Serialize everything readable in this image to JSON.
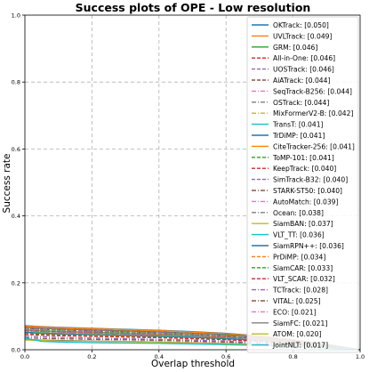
{
  "chart_data": {
    "type": "line",
    "title": "Success plots of OPE - Low resolution",
    "xlabel": "Overlap threshold",
    "ylabel": "Success rate",
    "xlim": [
      0,
      1
    ],
    "ylim": [
      0,
      1
    ],
    "grid": true,
    "legend_position": "top-right",
    "x": [
      0,
      0.05,
      0.1,
      0.2,
      0.3,
      0.4,
      0.5,
      0.6,
      0.7,
      0.8,
      0.9,
      1.0
    ],
    "x_ticks": [
      0.0,
      0.2,
      0.4,
      0.6,
      0.8,
      1.0
    ],
    "x_tick_labels": [
      "0.0",
      "0.2",
      "0.4",
      "0.6",
      "0.8",
      "1.0"
    ],
    "y_ticks": [
      0.0,
      0.2,
      0.4,
      0.6,
      0.8,
      1.0
    ],
    "y_tick_labels": [
      "0.0",
      "0.2",
      "0.4",
      "0.6",
      "0.8",
      "1.0"
    ],
    "series": [
      {
        "label": "OKTrack: [0.050]",
        "color": "#1f77b4",
        "dash": "solid",
        "values": [
          0.072,
          0.069,
          0.067,
          0.064,
          0.061,
          0.058,
          0.054,
          0.049,
          0.041,
          0.03,
          0.016,
          0.0
        ]
      },
      {
        "label": "UVLTrack: [0.049]",
        "color": "#ff7f0e",
        "dash": "solid",
        "values": [
          0.071,
          0.068,
          0.066,
          0.063,
          0.06,
          0.057,
          0.053,
          0.048,
          0.04,
          0.029,
          0.015,
          0.0
        ]
      },
      {
        "label": "GRM: [0.046]",
        "color": "#2ca02c",
        "dash": "solid",
        "values": [
          0.067,
          0.064,
          0.062,
          0.059,
          0.056,
          0.053,
          0.049,
          0.045,
          0.037,
          0.027,
          0.014,
          0.0
        ]
      },
      {
        "label": "All-in-One: [0.046]",
        "color": "#d62728",
        "dash": "dashed",
        "values": [
          0.067,
          0.064,
          0.062,
          0.059,
          0.056,
          0.053,
          0.049,
          0.044,
          0.037,
          0.027,
          0.014,
          0.0
        ]
      },
      {
        "label": "UOSTrack: [0.046]",
        "color": "#9467bd",
        "dash": "dashed",
        "values": [
          0.066,
          0.063,
          0.061,
          0.058,
          0.055,
          0.052,
          0.049,
          0.044,
          0.037,
          0.027,
          0.014,
          0.0
        ]
      },
      {
        "label": "AiATrack: [0.044]",
        "color": "#8c564b",
        "dash": "dashed",
        "values": [
          0.064,
          0.061,
          0.059,
          0.056,
          0.053,
          0.05,
          0.047,
          0.042,
          0.035,
          0.026,
          0.013,
          0.0
        ]
      },
      {
        "label": "SeqTrack-B256: [0.044]",
        "color": "#e377c2",
        "dash": "dashdot",
        "values": [
          0.064,
          0.061,
          0.059,
          0.056,
          0.053,
          0.05,
          0.047,
          0.042,
          0.035,
          0.025,
          0.013,
          0.0
        ]
      },
      {
        "label": "OSTrack: [0.044]",
        "color": "#7f7f7f",
        "dash": "dashdot",
        "values": [
          0.063,
          0.06,
          0.058,
          0.055,
          0.053,
          0.05,
          0.046,
          0.042,
          0.035,
          0.025,
          0.013,
          0.0
        ]
      },
      {
        "label": "MixFormerV2-B: [0.042]",
        "color": "#bcbd22",
        "dash": "dashdot",
        "values": [
          0.061,
          0.058,
          0.056,
          0.053,
          0.051,
          0.048,
          0.045,
          0.04,
          0.033,
          0.024,
          0.012,
          0.0
        ]
      },
      {
        "label": "TransT: [0.041]",
        "color": "#17becf",
        "dash": "solid",
        "values": [
          0.06,
          0.057,
          0.055,
          0.052,
          0.05,
          0.047,
          0.044,
          0.039,
          0.033,
          0.024,
          0.012,
          0.0
        ]
      },
      {
        "label": "TrDiMP: [0.041]",
        "color": "#1f77b4",
        "dash": "solid",
        "values": [
          0.059,
          0.056,
          0.054,
          0.052,
          0.049,
          0.046,
          0.043,
          0.039,
          0.032,
          0.023,
          0.012,
          0.0
        ]
      },
      {
        "label": "CiteTracker-256: [0.041]",
        "color": "#ff7f0e",
        "dash": "solid",
        "values": [
          0.059,
          0.056,
          0.054,
          0.051,
          0.049,
          0.046,
          0.043,
          0.039,
          0.032,
          0.023,
          0.012,
          0.0
        ]
      },
      {
        "label": "ToMP-101: [0.041]",
        "color": "#2ca02c",
        "dash": "dashed",
        "values": [
          0.059,
          0.056,
          0.054,
          0.051,
          0.049,
          0.046,
          0.043,
          0.038,
          0.032,
          0.023,
          0.012,
          0.0
        ]
      },
      {
        "label": "KeepTrack: [0.040]",
        "color": "#d62728",
        "dash": "dashed",
        "values": [
          0.058,
          0.055,
          0.053,
          0.05,
          0.048,
          0.045,
          0.042,
          0.038,
          0.031,
          0.023,
          0.011,
          0.0
        ]
      },
      {
        "label": "SimTrack-B32: [0.040]",
        "color": "#9467bd",
        "dash": "dashed",
        "values": [
          0.058,
          0.055,
          0.053,
          0.05,
          0.048,
          0.045,
          0.042,
          0.037,
          0.031,
          0.022,
          0.011,
          0.0
        ]
      },
      {
        "label": "STARK-ST50: [0.040]",
        "color": "#8c564b",
        "dash": "dashdot",
        "values": [
          0.057,
          0.054,
          0.052,
          0.05,
          0.047,
          0.045,
          0.042,
          0.037,
          0.031,
          0.022,
          0.011,
          0.0
        ]
      },
      {
        "label": "AutoMatch: [0.039]",
        "color": "#e377c2",
        "dash": "dashdot",
        "values": [
          0.056,
          0.053,
          0.051,
          0.049,
          0.046,
          0.044,
          0.041,
          0.036,
          0.03,
          0.022,
          0.011,
          0.0
        ]
      },
      {
        "label": "Ocean: [0.038]",
        "color": "#7f7f7f",
        "dash": "dashdot",
        "values": [
          0.055,
          0.052,
          0.05,
          0.047,
          0.045,
          0.043,
          0.04,
          0.035,
          0.029,
          0.021,
          0.011,
          0.0
        ]
      },
      {
        "label": "SiamBAN: [0.037]",
        "color": "#bcbd22",
        "dash": "solid",
        "values": [
          0.053,
          0.051,
          0.049,
          0.046,
          0.044,
          0.042,
          0.039,
          0.034,
          0.029,
          0.021,
          0.01,
          0.0
        ]
      },
      {
        "label": "VLT_TT: [0.036]",
        "color": "#17becf",
        "dash": "solid",
        "values": [
          0.052,
          0.05,
          0.048,
          0.045,
          0.043,
          0.041,
          0.038,
          0.034,
          0.028,
          0.02,
          0.01,
          0.0
        ]
      },
      {
        "label": "SiamRPN++: [0.036]",
        "color": "#1f77b4",
        "dash": "solid",
        "values": [
          0.052,
          0.049,
          0.047,
          0.045,
          0.043,
          0.04,
          0.037,
          0.033,
          0.028,
          0.02,
          0.01,
          0.0
        ]
      },
      {
        "label": "PrDiMP: [0.034]",
        "color": "#ff7f0e",
        "dash": "dashed",
        "values": [
          0.049,
          0.047,
          0.045,
          0.043,
          0.041,
          0.038,
          0.035,
          0.031,
          0.026,
          0.019,
          0.009,
          0.0
        ]
      },
      {
        "label": "SiamCAR: [0.033]",
        "color": "#2ca02c",
        "dash": "dashed",
        "values": [
          0.048,
          0.046,
          0.044,
          0.041,
          0.039,
          0.037,
          0.034,
          0.031,
          0.025,
          0.018,
          0.009,
          0.0
        ]
      },
      {
        "label": "VLT_SCAR: [0.032]",
        "color": "#d62728",
        "dash": "dashed",
        "values": [
          0.046,
          0.044,
          0.042,
          0.04,
          0.038,
          0.036,
          0.033,
          0.03,
          0.025,
          0.018,
          0.009,
          0.0
        ]
      },
      {
        "label": "TCTrack: [0.028]",
        "color": "#9467bd",
        "dash": "dashdot",
        "values": [
          0.041,
          0.039,
          0.037,
          0.035,
          0.033,
          0.031,
          0.029,
          0.026,
          0.021,
          0.015,
          0.008,
          0.0
        ]
      },
      {
        "label": "VITAL: [0.025]",
        "color": "#8c564b",
        "dash": "dashdot",
        "values": [
          0.036,
          0.034,
          0.033,
          0.031,
          0.03,
          0.028,
          0.026,
          0.023,
          0.019,
          0.014,
          0.007,
          0.0
        ]
      },
      {
        "label": "ECO: [0.021]",
        "color": "#e377c2",
        "dash": "dashdot",
        "values": [
          0.031,
          0.029,
          0.028,
          0.026,
          0.025,
          0.023,
          0.022,
          0.019,
          0.016,
          0.012,
          0.006,
          0.0
        ]
      },
      {
        "label": "SiamFC: [0.021]",
        "color": "#7f7f7f",
        "dash": "solid",
        "values": [
          0.03,
          0.029,
          0.028,
          0.026,
          0.025,
          0.023,
          0.021,
          0.019,
          0.016,
          0.012,
          0.006,
          0.0
        ]
      },
      {
        "label": "ATOM: [0.020]",
        "color": "#bcbd22",
        "dash": "solid",
        "values": [
          0.029,
          0.028,
          0.026,
          0.025,
          0.024,
          0.022,
          0.02,
          0.018,
          0.015,
          0.011,
          0.005,
          0.0
        ]
      },
      {
        "label": "JointNLT: [0.017]",
        "color": "#17becf",
        "dash": "solid",
        "values": [
          0.035,
          0.025,
          0.023,
          0.021,
          0.02,
          0.019,
          0.017,
          0.015,
          0.013,
          0.009,
          0.005,
          0.0
        ]
      }
    ]
  }
}
